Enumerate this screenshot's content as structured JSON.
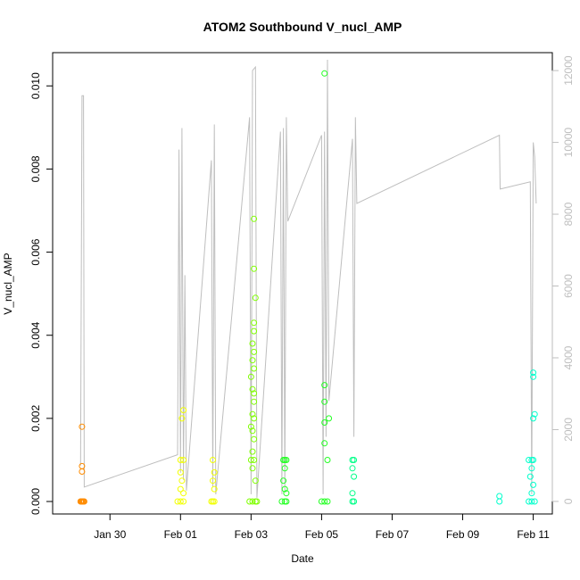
{
  "chart_data": {
    "type": "scatter",
    "title": "ATOM2 Southbound V_nucl_AMP",
    "xlabel": "Date",
    "ylabel": "V_nucl_AMP",
    "xlim": [
      "2019-01-28T09:00",
      "2019-02-11T13:00"
    ],
    "ylim": [
      -0.0003,
      0.0108
    ],
    "y2lim": [
      -350,
      12500
    ],
    "x_ticks": [
      {
        "date": "2019-01-30T00:00",
        "label": "Jan 30"
      },
      {
        "date": "2019-02-01T00:00",
        "label": "Feb 01"
      },
      {
        "date": "2019-02-03T00:00",
        "label": "Feb 03"
      },
      {
        "date": "2019-02-05T00:00",
        "label": "Feb 05"
      },
      {
        "date": "2019-02-07T00:00",
        "label": "Feb 07"
      },
      {
        "date": "2019-02-09T00:00",
        "label": "Feb 09"
      },
      {
        "date": "2019-02-11T00:00",
        "label": "Feb 11"
      }
    ],
    "y_ticks": [
      "0.000",
      "0.002",
      "0.004",
      "0.006",
      "0.008",
      "0.010"
    ],
    "y_tick_values": [
      0,
      0.002,
      0.004,
      0.006,
      0.008,
      0.01
    ],
    "y2_ticks": [
      "0",
      "2000",
      "4000",
      "6000",
      "8000",
      "10000",
      "12000"
    ],
    "y2_tick_values": [
      0,
      2000,
      4000,
      6000,
      8000,
      10000,
      12000
    ],
    "grid": false,
    "point_colors": [
      "#ff8c00",
      "#f2ff00",
      "#7fff00",
      "#22ff22",
      "#00ff88",
      "#00ffcc"
    ],
    "line_color": "#bebebe",
    "series": [
      {
        "color": "#ff8c00",
        "points": [
          [
            "2019-01-29T04:00",
            0.0
          ],
          [
            "2019-01-29T04:30",
            0.0
          ],
          [
            "2019-01-29T05:00",
            0.0
          ],
          [
            "2019-01-29T05:30",
            0.0
          ],
          [
            "2019-01-29T06:00",
            0.0
          ],
          [
            "2019-01-29T06:30",
            0.0
          ],
          [
            "2019-01-29T05:00",
            0.0018
          ],
          [
            "2019-01-29T05:00",
            0.00085
          ],
          [
            "2019-01-29T05:00",
            0.00072
          ]
        ]
      },
      {
        "color": "#f2ff00",
        "points": [
          [
            "2019-01-31T22:00",
            0.0
          ],
          [
            "2019-02-01T00:00",
            0.0
          ],
          [
            "2019-02-01T02:00",
            0.0
          ],
          [
            "2019-02-01T00:00",
            0.001
          ],
          [
            "2019-02-01T02:00",
            0.001
          ],
          [
            "2019-02-01T00:00",
            0.0007
          ],
          [
            "2019-02-01T01:00",
            0.0005
          ],
          [
            "2019-02-01T00:00",
            0.0003
          ],
          [
            "2019-02-01T02:00",
            0.0002
          ],
          [
            "2019-02-01T02:00",
            0.0022
          ],
          [
            "2019-02-01T01:00",
            0.002
          ],
          [
            "2019-02-01T21:00",
            0.0
          ],
          [
            "2019-02-01T22:00",
            0.0
          ],
          [
            "2019-02-01T23:00",
            0.0
          ],
          [
            "2019-02-01T22:00",
            0.001
          ],
          [
            "2019-02-01T23:00",
            0.0007
          ],
          [
            "2019-02-01T22:00",
            0.0005
          ],
          [
            "2019-02-01T23:00",
            0.0003
          ]
        ]
      },
      {
        "color": "#7fff00",
        "points": [
          [
            "2019-02-02T23:00",
            0.0
          ],
          [
            "2019-02-03T01:00",
            0.0
          ],
          [
            "2019-02-03T03:00",
            0.0
          ],
          [
            "2019-02-03T04:00",
            0.0
          ],
          [
            "2019-02-03T02:00",
            0.0068
          ],
          [
            "2019-02-03T02:00",
            0.0056
          ],
          [
            "2019-02-03T03:00",
            0.0049
          ],
          [
            "2019-02-03T02:00",
            0.0043
          ],
          [
            "2019-02-03T02:00",
            0.0041
          ],
          [
            "2019-02-03T01:00",
            0.0038
          ],
          [
            "2019-02-03T02:00",
            0.0036
          ],
          [
            "2019-02-03T01:00",
            0.0034
          ],
          [
            "2019-02-03T02:00",
            0.0032
          ],
          [
            "2019-02-03T00:00",
            0.003
          ],
          [
            "2019-02-03T01:00",
            0.0027
          ],
          [
            "2019-02-03T02:00",
            0.0026
          ],
          [
            "2019-02-03T02:00",
            0.0024
          ],
          [
            "2019-02-03T01:00",
            0.0021
          ],
          [
            "2019-02-03T02:00",
            0.002
          ],
          [
            "2019-02-03T00:00",
            0.0018
          ],
          [
            "2019-02-03T01:00",
            0.0017
          ],
          [
            "2019-02-03T02:00",
            0.0015
          ],
          [
            "2019-02-03T01:00",
            0.0012
          ],
          [
            "2019-02-03T00:00",
            0.001
          ],
          [
            "2019-02-03T02:00",
            0.001
          ],
          [
            "2019-02-03T01:00",
            0.0008
          ],
          [
            "2019-02-03T03:00",
            0.0005
          ]
        ]
      },
      {
        "color": "#22ff22",
        "points": [
          [
            "2019-02-03T21:00",
            0.0
          ],
          [
            "2019-02-03T23:00",
            0.0
          ],
          [
            "2019-02-04T00:00",
            0.0
          ],
          [
            "2019-02-03T22:00",
            0.001
          ],
          [
            "2019-02-03T23:00",
            0.001
          ],
          [
            "2019-02-04T00:00",
            0.001
          ],
          [
            "2019-02-03T23:00",
            0.0008
          ],
          [
            "2019-02-03T22:00",
            0.0005
          ],
          [
            "2019-02-03T23:00",
            0.0003
          ],
          [
            "2019-02-04T00:00",
            0.0002
          ],
          [
            "2019-02-05T00:00",
            0.0
          ],
          [
            "2019-02-05T02:00",
            0.0
          ],
          [
            "2019-02-05T04:00",
            0.0
          ],
          [
            "2019-02-05T02:00",
            0.0103
          ],
          [
            "2019-02-05T02:00",
            0.0028
          ],
          [
            "2019-02-05T02:00",
            0.0024
          ],
          [
            "2019-02-05T02:00",
            0.0019
          ],
          [
            "2019-02-05T05:00",
            0.002
          ],
          [
            "2019-02-05T02:00",
            0.0014
          ],
          [
            "2019-02-05T04:00",
            0.001
          ]
        ]
      },
      {
        "color": "#00ff88",
        "points": [
          [
            "2019-02-05T21:00",
            0.0
          ],
          [
            "2019-02-05T22:00",
            0.0
          ],
          [
            "2019-02-05T21:00",
            0.001
          ],
          [
            "2019-02-05T22:00",
            0.001
          ],
          [
            "2019-02-05T21:00",
            0.0008
          ],
          [
            "2019-02-05T22:00",
            0.0006
          ],
          [
            "2019-02-05T21:00",
            0.0002
          ]
        ]
      },
      {
        "color": "#00ffcc",
        "points": [
          [
            "2019-02-10T01:00",
            0.0
          ],
          [
            "2019-02-10T01:00",
            0.00013
          ],
          [
            "2019-02-10T21:00",
            0.0
          ],
          [
            "2019-02-10T23:00",
            0.0
          ],
          [
            "2019-02-11T01:00",
            0.0
          ],
          [
            "2019-02-10T21:00",
            0.001
          ],
          [
            "2019-02-10T23:00",
            0.001
          ],
          [
            "2019-02-11T00:00",
            0.001
          ],
          [
            "2019-02-10T23:00",
            0.0008
          ],
          [
            "2019-02-10T22:00",
            0.0006
          ],
          [
            "2019-02-11T00:00",
            0.0004
          ],
          [
            "2019-02-10T23:00",
            0.0002
          ],
          [
            "2019-02-11T00:00",
            0.003
          ],
          [
            "2019-02-11T00:00",
            0.0031
          ],
          [
            "2019-02-11T00:00",
            0.002
          ],
          [
            "2019-02-11T01:00",
            0.0021
          ]
        ]
      }
    ],
    "line_series": [
      [
        "2019-01-29T04:00",
        1000
      ],
      [
        "2019-01-29T05:00",
        11300
      ],
      [
        "2019-01-29T06:00",
        11300
      ],
      [
        "2019-01-29T06:30",
        400
      ],
      [
        "2019-01-31T22:00",
        1300
      ],
      [
        "2019-01-31T23:00",
        9800
      ],
      [
        "2019-02-01T00:00",
        800
      ],
      [
        "2019-02-01T01:00",
        10400
      ],
      [
        "2019-02-01T02:00",
        600
      ],
      [
        "2019-02-01T03:00",
        6300
      ],
      [
        "2019-02-01T04:00",
        300
      ],
      [
        "2019-02-01T21:00",
        9500
      ],
      [
        "2019-02-01T22:00",
        400
      ],
      [
        "2019-02-01T23:00",
        10500
      ],
      [
        "2019-02-02T00:00",
        200
      ],
      [
        "2019-02-02T23:00",
        10700
      ],
      [
        "2019-02-03T00:00",
        200
      ],
      [
        "2019-02-03T01:00",
        12000
      ],
      [
        "2019-02-03T03:00",
        12100
      ],
      [
        "2019-02-03T04:00",
        100
      ],
      [
        "2019-02-03T20:00",
        10300
      ],
      [
        "2019-02-03T21:00",
        200
      ],
      [
        "2019-02-03T22:00",
        10400
      ],
      [
        "2019-02-03T23:00",
        300
      ],
      [
        "2019-02-04T00:00",
        10700
      ],
      [
        "2019-02-04T01:00",
        7800
      ],
      [
        "2019-02-05T00:00",
        10200
      ],
      [
        "2019-02-05T01:00",
        200
      ],
      [
        "2019-02-05T02:00",
        10300
      ],
      [
        "2019-02-05T03:00",
        1800
      ],
      [
        "2019-02-05T04:00",
        12300
      ],
      [
        "2019-02-05T05:00",
        2800
      ],
      [
        "2019-02-05T21:00",
        10100
      ],
      [
        "2019-02-05T22:00",
        1800
      ],
      [
        "2019-02-05T23:00",
        10700
      ],
      [
        "2019-02-06T00:00",
        8300
      ],
      [
        "2019-02-10T01:00",
        10200
      ],
      [
        "2019-02-10T01:30",
        8700
      ],
      [
        "2019-02-10T22:00",
        8900
      ],
      [
        "2019-02-10T23:00",
        200
      ],
      [
        "2019-02-11T00:00",
        10000
      ],
      [
        "2019-02-11T01:00",
        9600
      ],
      [
        "2019-02-11T02:00",
        8300
      ]
    ]
  }
}
